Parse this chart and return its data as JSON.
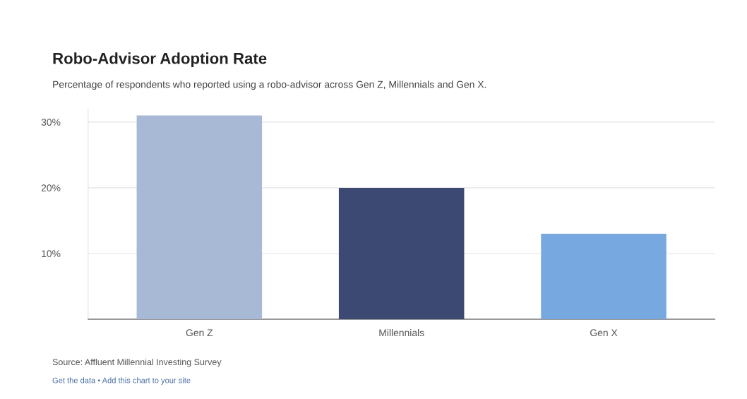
{
  "chart_data": {
    "type": "bar",
    "title": "Robo-Advisor Adoption Rate",
    "subtitle": "Percentage of respondents who reported using a robo-advisor across Gen Z, Millennials and Gen X.",
    "categories": [
      "Gen Z",
      "Millennials",
      "Gen X"
    ],
    "values": [
      31,
      20,
      13
    ],
    "colors": [
      "#a7b9d4",
      "#3c4a73",
      "#77a9e0"
    ],
    "ylim": [
      0,
      32
    ],
    "yticks": [
      {
        "value": 10,
        "label": "10%"
      },
      {
        "value": 20,
        "label": "20%"
      },
      {
        "value": 30,
        "label": "30%"
      }
    ],
    "grid": "y",
    "annotations": [
      "Source: Affluent Millennial Investing Survey",
      "Get the data • Add this chart to your site"
    ]
  }
}
